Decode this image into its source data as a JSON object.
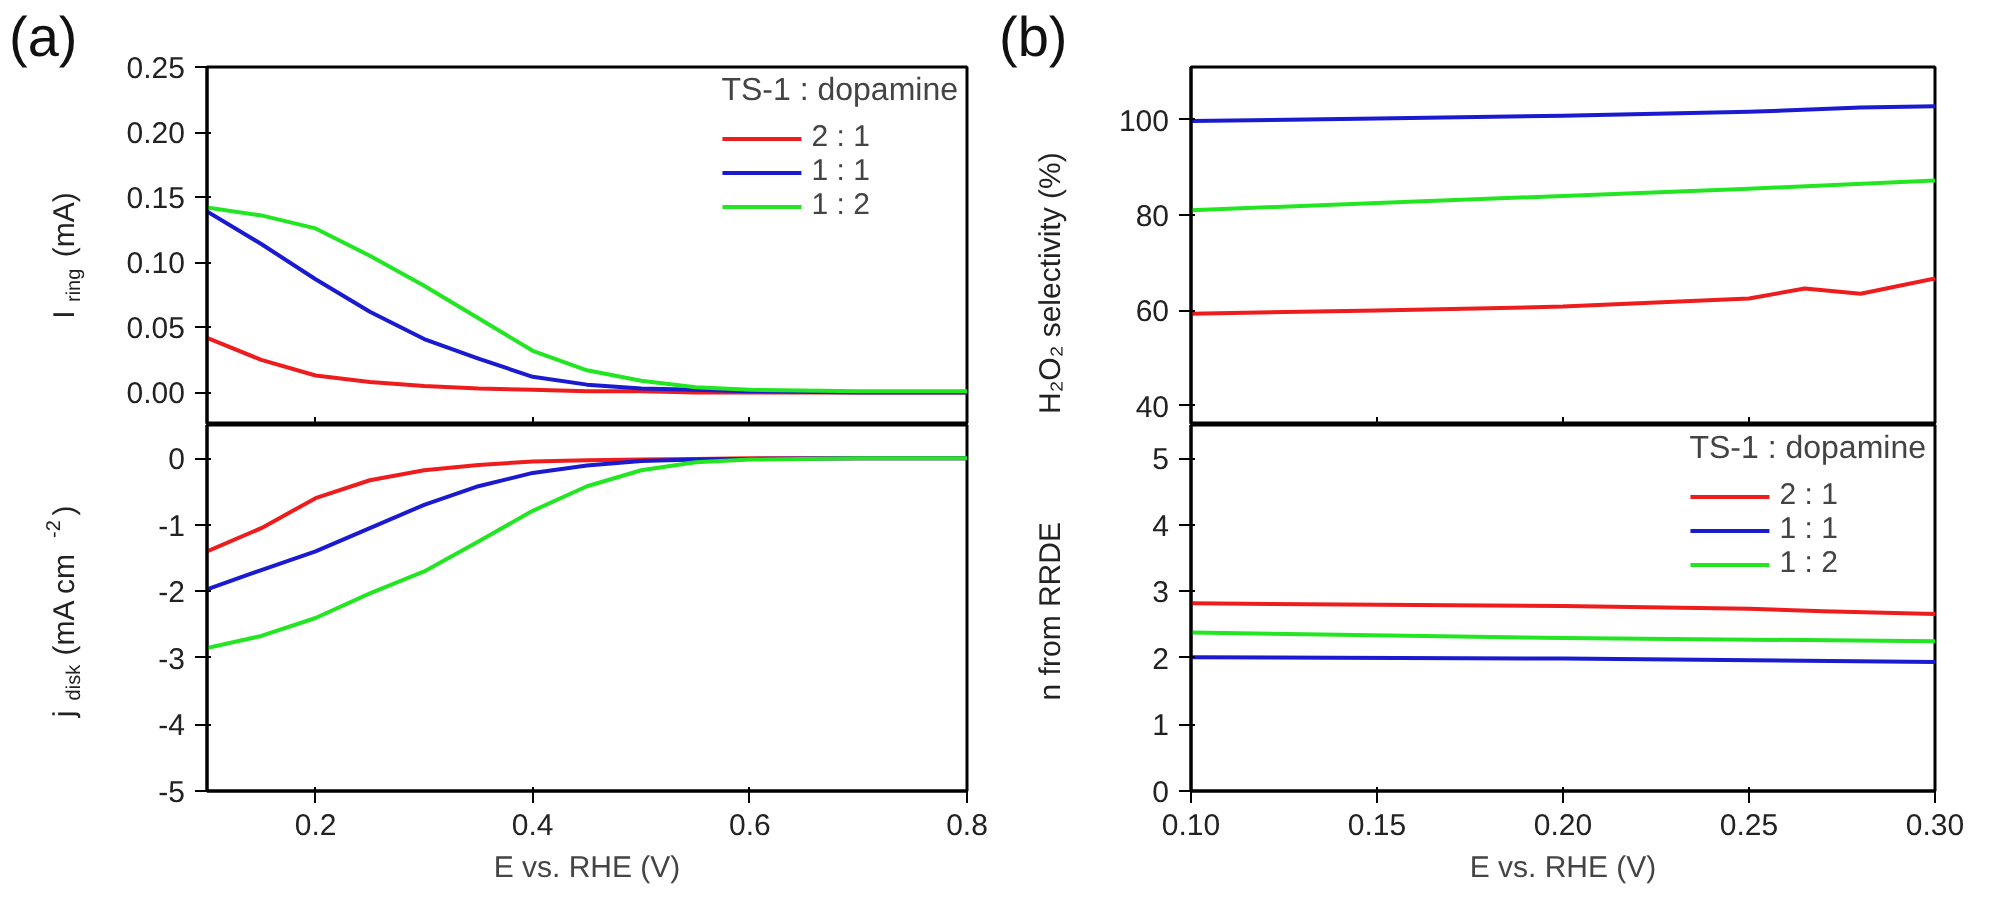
{
  "chart_data": [
    {
      "type": "line",
      "ylabel": "I$_{ring}$ (mA)",
      "annotations": [
        "(a)"
      ],
      "legend_title": "TS-1 : dopamine",
      "legend": "top right",
      "tick_labels": "y",
      "xlim": [
        0.1,
        0.8
      ],
      "xticks": [
        0.2,
        0.4,
        0.6,
        0.8
      ],
      "ylim": [
        -0.025,
        0.25
      ],
      "yticks": [
        {
          "value": 0,
          "label": "0.00"
        },
        {
          "value": 0.05,
          "label": "0.05"
        },
        {
          "value": 0.1,
          "label": "0.10"
        },
        {
          "value": 0.15,
          "label": "0.15"
        },
        {
          "value": 0.2,
          "label": "0.20"
        },
        {
          "value": 0.25,
          "label": "0.25"
        }
      ],
      "x": [
        0.1,
        0.15,
        0.2,
        0.25,
        0.3,
        0.35,
        0.4,
        0.45,
        0.5,
        0.55,
        0.6,
        0.7,
        0.8
      ],
      "series": [
        {
          "name": "2 : 1",
          "color": "#ee1c1c",
          "values": [
            0.042,
            0.025,
            0.013,
            0.008,
            0.005,
            0.003,
            0.002,
            0.001,
            0.001,
            0.0,
            0.0,
            0.0,
            0.0
          ]
        },
        {
          "name": "1 : 1",
          "color": "#1a1ad0",
          "values": [
            0.139,
            0.114,
            0.087,
            0.062,
            0.041,
            0.026,
            0.012,
            0.006,
            0.003,
            0.002,
            0.001,
            0.0,
            0.0
          ]
        },
        {
          "name": "1 : 2",
          "color": "#22e622",
          "values": [
            0.142,
            0.136,
            0.126,
            0.105,
            0.082,
            0.057,
            0.032,
            0.017,
            0.009,
            0.004,
            0.002,
            0.001,
            0.001
          ]
        }
      ]
    },
    {
      "type": "line",
      "ylabel": "j$_{disk}$ (mA cm$^{-2}$)",
      "xlabel": "E vs. RHE (V)",
      "xlim": [
        0.1,
        0.8
      ],
      "xticks": [
        0.2,
        0.4,
        0.6,
        0.8
      ],
      "ylim": [
        -5,
        0.5
      ],
      "yticks": [
        -5,
        -4,
        -3,
        -2,
        -1,
        0
      ],
      "x": [
        0.1,
        0.15,
        0.2,
        0.25,
        0.3,
        0.35,
        0.4,
        0.45,
        0.5,
        0.55,
        0.6,
        0.7,
        0.8
      ],
      "series": [
        {
          "color": "#ee1c1c",
          "values": [
            -1.4,
            -1.05,
            -0.6,
            -0.33,
            -0.18,
            -0.1,
            -0.05,
            -0.03,
            -0.02,
            -0.01,
            0.0,
            0.0,
            0.0
          ]
        },
        {
          "color": "#1a1ad0",
          "values": [
            -1.97,
            -1.68,
            -1.4,
            -1.05,
            -0.7,
            -0.42,
            -0.22,
            -0.11,
            -0.04,
            -0.02,
            -0.01,
            0.0,
            0.0
          ]
        },
        {
          "color": "#22e622",
          "values": [
            -2.85,
            -2.67,
            -2.4,
            -2.03,
            -1.7,
            -1.25,
            -0.79,
            -0.42,
            -0.18,
            -0.06,
            -0.02,
            0.0,
            0.0
          ]
        }
      ]
    },
    {
      "type": "line",
      "ylabel": "H₂O₂ selectivity (%)",
      "annotations": [
        "(b)"
      ],
      "tick_labels": "y",
      "xlim": [
        0.1,
        0.3
      ],
      "xticks": [
        0.1,
        0.15,
        0.2,
        0.25,
        0.3
      ],
      "ylim": [
        36,
        111
      ],
      "yticks": [
        40,
        60,
        80,
        100
      ],
      "series": [
        {
          "color": "#ee1c1c",
          "x": [
            0.1,
            0.15,
            0.2,
            0.25,
            0.265,
            0.28,
            0.3
          ],
          "values": [
            59.3,
            60.0,
            60.8,
            62.5,
            64.6,
            63.5,
            66.7
          ]
        },
        {
          "color": "#1a1ad0",
          "x": [
            0.1,
            0.15,
            0.2,
            0.25,
            0.28,
            0.3
          ],
          "values": [
            99.7,
            100.2,
            100.8,
            101.6,
            102.5,
            102.8
          ]
        },
        {
          "color": "#22e622",
          "x": [
            0.1,
            0.15,
            0.2,
            0.25,
            0.3
          ],
          "values": [
            81.0,
            82.5,
            84.0,
            85.5,
            87.2
          ]
        }
      ]
    },
    {
      "type": "line",
      "ylabel": "n from RRDE",
      "xlabel": "E vs. RHE (V)",
      "legend_title": "TS-1 : dopamine",
      "legend": "top right",
      "xlim": [
        0.1,
        0.3
      ],
      "xticks": [
        {
          "value": 0.1,
          "label": "0.10"
        },
        {
          "value": 0.15,
          "label": "0.15"
        },
        {
          "value": 0.2,
          "label": "0.20"
        },
        {
          "value": 0.25,
          "label": "0.25"
        },
        {
          "value": 0.3,
          "label": "0.30"
        }
      ],
      "ylim": [
        0,
        5.5
      ],
      "yticks": [
        0,
        1,
        2,
        3,
        4,
        5
      ],
      "series": [
        {
          "name": "2 : 1",
          "color": "#ee1c1c",
          "x": [
            0.1,
            0.2,
            0.25,
            0.27,
            0.3
          ],
          "values": [
            2.82,
            2.78,
            2.74,
            2.7,
            2.66
          ]
        },
        {
          "name": "1 : 1",
          "color": "#1a1ad0",
          "x": [
            0.1,
            0.2,
            0.3
          ],
          "values": [
            2.01,
            1.99,
            1.94
          ]
        },
        {
          "name": "1 : 2",
          "color": "#22e622",
          "x": [
            0.1,
            0.2,
            0.3
          ],
          "values": [
            2.38,
            2.3,
            2.25
          ]
        }
      ]
    }
  ]
}
